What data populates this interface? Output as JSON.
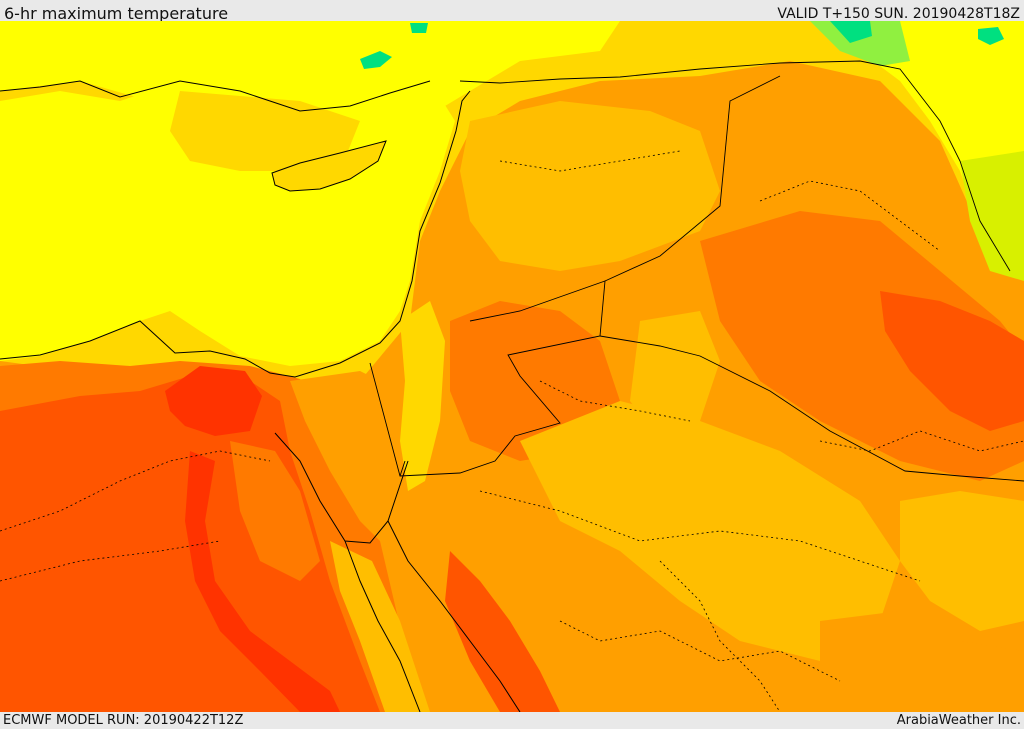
{
  "header": {
    "title": "6-hr maximum temperature",
    "valid": "VALID T+150 SUN. 20190428T18Z"
  },
  "footer": {
    "model_run": "ECMWF MODEL RUN: 20190422T12Z",
    "credit": "ArabiaWeather Inc."
  },
  "palette": {
    "green": "#00e080",
    "light_green": "#90f040",
    "yellow_green": "#d8f000",
    "yellow": "#ffff00",
    "light_gold": "#ffd800",
    "gold": "#ffbe00",
    "orange": "#ff9f00",
    "dark_orange": "#ff7a00",
    "red_orange": "#ff5500",
    "red": "#ff3300"
  }
}
